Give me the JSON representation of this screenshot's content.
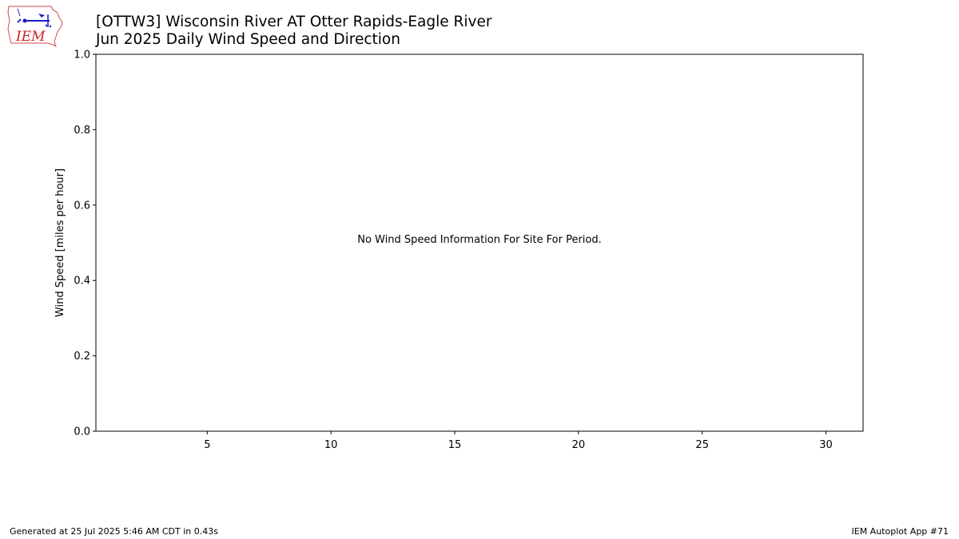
{
  "header": {
    "title_line1": "[OTTW3] Wisconsin River  AT Otter Rapids-Eagle River",
    "title_line2": "Jun 2025 Daily Wind Speed and Direction"
  },
  "logo": {
    "text": "IEM",
    "icon": "iem-iowa-logo-icon",
    "color": "#cc2222",
    "accent": "#1a1acc"
  },
  "footer": {
    "generated": "Generated at 25 Jul 2025 5:46 AM CDT in 0.43s",
    "app": "IEM Autoplot App #71"
  },
  "chart_data": {
    "type": "bar",
    "title": "",
    "xlabel": "",
    "ylabel": "Wind Speed [miles per hour]",
    "xlim": [
      0.5,
      31.5
    ],
    "ylim": [
      0,
      1
    ],
    "x_ticks": [
      5,
      10,
      15,
      20,
      25,
      30
    ],
    "y_ticks": [
      0.0,
      0.2,
      0.4,
      0.6,
      0.8,
      1.0
    ],
    "x_tick_labels": [
      "5",
      "10",
      "15",
      "20",
      "25",
      "30"
    ],
    "y_tick_labels": [
      "0.0",
      "0.2",
      "0.4",
      "0.6",
      "0.8",
      "1.0"
    ],
    "annotation": "No Wind Speed Information For Site For Period.",
    "grid": false,
    "series": []
  }
}
